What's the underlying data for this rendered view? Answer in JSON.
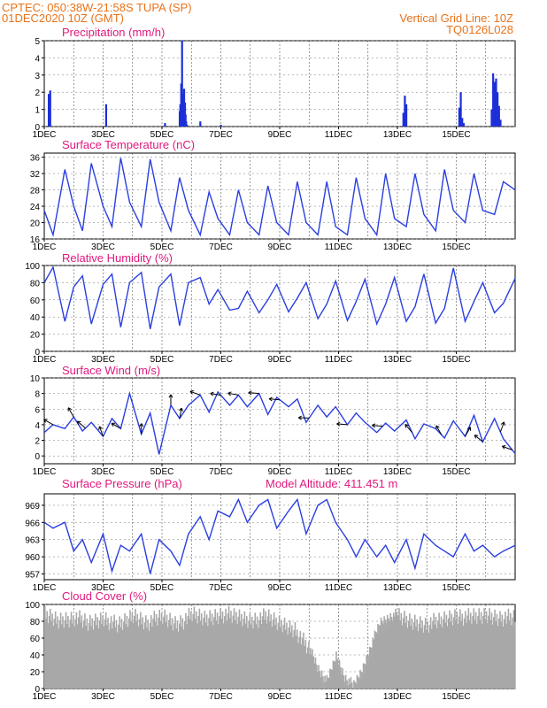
{
  "header": {
    "left_line1": "CPTEC:   050:38W-21:58S   TUPA (SP)",
    "left_line2": "01DEC2020 10Z (GMT)",
    "right_line1": "Vertical Grid Line: 10Z",
    "right_line2": "TQ0126L028"
  },
  "colors": {
    "line": "#2b3fe0",
    "bar": "#1c2fd8",
    "cloud": "#a8a8a8",
    "header": "#e8731a",
    "title": "#e0197d"
  },
  "x_labels": [
    "1DEC",
    "3DEC",
    "5DEC",
    "7DEC",
    "9DEC",
    "11DEC",
    "13DEC",
    "15DEC"
  ],
  "chart_data": [
    {
      "id": "precip",
      "type": "bar",
      "title": "Precipitation (mm/h)",
      "ylim": [
        0,
        5
      ],
      "yticks": [
        "0",
        "1",
        "2",
        "3",
        "4",
        "5"
      ],
      "x_days": [
        0.15,
        0.2,
        2.1,
        4.1,
        4.6,
        4.62,
        4.65,
        4.68,
        4.7,
        4.72,
        4.75,
        4.78,
        4.8,
        4.82,
        4.85,
        5.3,
        6.0,
        12.2,
        12.25,
        12.3,
        14.1,
        14.15,
        14.2,
        14.25,
        15.2,
        15.25,
        15.3,
        15.35,
        15.4,
        15.45,
        15.5
      ],
      "values": [
        1.9,
        2.1,
        1.3,
        0.2,
        0.9,
        1.3,
        2.5,
        5.0,
        1.2,
        1.9,
        2.2,
        1.4,
        0.7,
        0.3,
        0.1,
        0.3,
        0.1,
        0.8,
        1.8,
        1.3,
        1.1,
        2.0,
        0.5,
        0.2,
        1.0,
        3.1,
        2.6,
        2.8,
        2.0,
        1.2,
        0.4
      ]
    },
    {
      "id": "temp",
      "type": "line",
      "title": "Surface Temperature (nC)",
      "ylim": [
        16,
        37
      ],
      "yticks": [
        "16",
        "20",
        "24",
        "28",
        "32",
        "36"
      ],
      "x_days": [
        0,
        0.3,
        0.7,
        1.0,
        1.3,
        1.6,
        2.0,
        2.3,
        2.6,
        2.9,
        3.3,
        3.6,
        3.9,
        4.3,
        4.6,
        4.9,
        5.3,
        5.6,
        5.9,
        6.3,
        6.6,
        6.9,
        7.3,
        7.6,
        7.9,
        8.3,
        8.6,
        8.9,
        9.3,
        9.6,
        9.9,
        10.3,
        10.6,
        10.9,
        11.3,
        11.6,
        11.9,
        12.3,
        12.6,
        12.9,
        13.3,
        13.6,
        13.9,
        14.3,
        14.6,
        14.9,
        15.3,
        15.6,
        16.0
      ],
      "values": [
        23,
        17,
        33,
        24,
        18,
        34.5,
        24,
        19,
        35.8,
        25,
        19,
        35.5,
        25,
        18,
        31,
        23,
        17,
        27.5,
        21,
        17,
        28,
        20,
        17,
        29,
        20,
        17,
        30,
        20,
        17,
        30,
        19,
        17,
        31,
        21,
        17,
        32,
        21,
        19,
        32,
        22,
        18,
        33,
        23,
        20,
        32,
        23,
        22,
        30,
        28
      ]
    },
    {
      "id": "rh",
      "type": "line",
      "title": "Relative Humidity (%)",
      "ylim": [
        0,
        100
      ],
      "yticks": [
        "0",
        "20",
        "40",
        "60",
        "80",
        "100"
      ],
      "x_days": [
        0,
        0.3,
        0.7,
        1.0,
        1.3,
        1.6,
        2.0,
        2.3,
        2.6,
        2.9,
        3.3,
        3.6,
        3.9,
        4.3,
        4.6,
        4.9,
        5.3,
        5.6,
        5.9,
        6.3,
        6.6,
        6.9,
        7.3,
        7.6,
        7.9,
        8.3,
        8.6,
        8.9,
        9.3,
        9.6,
        9.9,
        10.3,
        10.6,
        10.9,
        11.3,
        11.6,
        11.9,
        12.3,
        12.6,
        12.9,
        13.3,
        13.6,
        13.9,
        14.3,
        14.6,
        14.9,
        15.3,
        15.6,
        16.0
      ],
      "values": [
        80,
        98,
        35,
        75,
        88,
        32,
        78,
        90,
        28,
        80,
        92,
        26,
        75,
        90,
        30,
        80,
        86,
        55,
        72,
        48,
        50,
        70,
        45,
        60,
        78,
        46,
        62,
        80,
        38,
        55,
        82,
        36,
        58,
        84,
        32,
        55,
        86,
        35,
        52,
        90,
        33,
        50,
        97,
        35,
        58,
        80,
        45,
        56,
        85
      ]
    },
    {
      "id": "wind",
      "type": "line",
      "title": "Surface Wind (m/s)",
      "ylim": [
        -1,
        10
      ],
      "yticks": [
        "0",
        "2",
        "4",
        "6",
        "8",
        "10"
      ],
      "x_days": [
        0,
        0.3,
        0.7,
        1.0,
        1.3,
        1.6,
        2.0,
        2.3,
        2.6,
        2.9,
        3.3,
        3.6,
        3.9,
        4.3,
        4.6,
        4.9,
        5.3,
        5.6,
        5.9,
        6.3,
        6.6,
        6.9,
        7.3,
        7.6,
        7.9,
        8.3,
        8.6,
        8.9,
        9.3,
        9.6,
        9.9,
        10.3,
        10.6,
        10.9,
        11.3,
        11.6,
        11.9,
        12.3,
        12.6,
        12.9,
        13.3,
        13.6,
        13.9,
        14.3,
        14.6,
        14.9,
        15.3,
        15.6,
        16.0
      ],
      "values": [
        3,
        4,
        3.5,
        5,
        3.2,
        4.3,
        2.5,
        4.8,
        3.5,
        8,
        2.8,
        5.5,
        0.2,
        6.5,
        4.8,
        6.5,
        7.8,
        5.6,
        8.2,
        6.5,
        7.8,
        6.3,
        8,
        5.3,
        7.5,
        6.3,
        7.3,
        4.3,
        6.5,
        5,
        6.3,
        4,
        5.5,
        4.3,
        3,
        4.2,
        3.2,
        4.6,
        2.2,
        4.1,
        3.5,
        2.3,
        4.5,
        2.5,
        5.2,
        1.8,
        4.8,
        2.2,
        0.3
      ]
    },
    {
      "id": "pres",
      "type": "line",
      "title": "Surface Pressure (hPa)",
      "annotation": "Model Altitude: 411.451 m",
      "ylim": [
        956,
        971
      ],
      "yticks": [
        "957",
        "960",
        "963",
        "966",
        "969"
      ],
      "x_days": [
        0,
        0.3,
        0.7,
        1.0,
        1.3,
        1.6,
        2.0,
        2.3,
        2.6,
        2.9,
        3.3,
        3.6,
        3.9,
        4.3,
        4.6,
        4.9,
        5.3,
        5.6,
        5.9,
        6.3,
        6.6,
        6.9,
        7.3,
        7.6,
        7.9,
        8.3,
        8.6,
        8.9,
        9.3,
        9.6,
        9.9,
        10.3,
        10.6,
        10.9,
        11.3,
        11.6,
        11.9,
        12.3,
        12.6,
        12.9,
        13.3,
        13.6,
        13.9,
        14.3,
        14.6,
        14.9,
        15.3,
        15.6,
        16.0
      ],
      "values": [
        966,
        965,
        966,
        961,
        963,
        959,
        964,
        957.5,
        962,
        961,
        964,
        957,
        963,
        961,
        958.5,
        964,
        967,
        963,
        968,
        967,
        970,
        966,
        969,
        970,
        965,
        968,
        970,
        964,
        969,
        970,
        966,
        963,
        960,
        963,
        960,
        962,
        959,
        963,
        958,
        964,
        962,
        961,
        960,
        964,
        961,
        962,
        960,
        961,
        962
      ]
    },
    {
      "id": "cloud",
      "type": "area",
      "title": "Cloud Cover (%)",
      "ylim": [
        0,
        100
      ],
      "yticks": [
        "0",
        "20",
        "40",
        "60",
        "80",
        "100"
      ],
      "x_days": [
        0,
        0.5,
        1.0,
        1.5,
        2.0,
        2.5,
        3.0,
        3.5,
        4.0,
        4.5,
        5.0,
        5.5,
        6.0,
        6.5,
        7.0,
        7.5,
        8.0,
        8.5,
        9.0,
        9.3,
        9.6,
        9.9,
        10.2,
        10.5,
        10.8,
        11.1,
        11.4,
        11.7,
        12.0,
        12.5,
        13.0,
        13.5,
        14.0,
        14.5,
        15.0,
        15.5,
        16.0
      ],
      "values": [
        98,
        92,
        96,
        88,
        95,
        85,
        98,
        90,
        96,
        88,
        98,
        94,
        100,
        96,
        92,
        96,
        88,
        82,
        55,
        30,
        15,
        45,
        20,
        10,
        30,
        60,
        85,
        92,
        96,
        90,
        88,
        92,
        98,
        95,
        98,
        96,
        94
      ]
    }
  ]
}
